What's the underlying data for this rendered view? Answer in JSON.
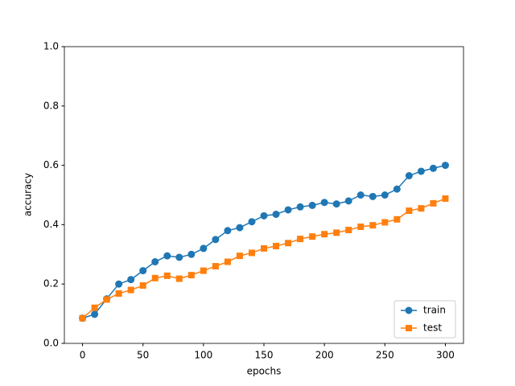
{
  "chart_data": {
    "type": "line",
    "xlabel": "epochs",
    "ylabel": "accuracy",
    "x": [
      0,
      10,
      20,
      30,
      40,
      50,
      60,
      70,
      80,
      90,
      100,
      110,
      120,
      130,
      140,
      150,
      160,
      170,
      180,
      190,
      200,
      210,
      220,
      230,
      240,
      250,
      260,
      270,
      280,
      290,
      300
    ],
    "series": [
      {
        "name": "train",
        "color": "#1f77b4",
        "marker": "o",
        "values": [
          0.085,
          0.098,
          0.15,
          0.2,
          0.215,
          0.245,
          0.275,
          0.295,
          0.29,
          0.3,
          0.32,
          0.35,
          0.38,
          0.39,
          0.41,
          0.43,
          0.435,
          0.45,
          0.46,
          0.465,
          0.475,
          0.47,
          0.48,
          0.5,
          0.495,
          0.5,
          0.52,
          0.565,
          0.58,
          0.59,
          0.6
        ]
      },
      {
        "name": "test",
        "color": "#ff7f0e",
        "marker": "s",
        "values": [
          0.085,
          0.12,
          0.148,
          0.168,
          0.18,
          0.195,
          0.22,
          0.228,
          0.218,
          0.23,
          0.245,
          0.26,
          0.275,
          0.295,
          0.305,
          0.32,
          0.328,
          0.338,
          0.352,
          0.36,
          0.368,
          0.373,
          0.382,
          0.393,
          0.398,
          0.408,
          0.418,
          0.447,
          0.455,
          0.472,
          0.488
        ]
      }
    ],
    "xlim": [
      -15,
      315
    ],
    "xticks": [
      0,
      50,
      100,
      150,
      200,
      250,
      300
    ],
    "ylim": [
      0,
      1
    ],
    "yticks": [
      {
        "value": 0,
        "label": "0.0"
      },
      {
        "value": 0.2,
        "label": "0.2"
      },
      {
        "value": 0.4,
        "label": "0.4"
      },
      {
        "value": 0.6,
        "label": "0.6"
      },
      {
        "value": 0.8,
        "label": "0.8"
      },
      {
        "value": 1,
        "label": "1.0"
      }
    ],
    "legend": "lower right"
  }
}
